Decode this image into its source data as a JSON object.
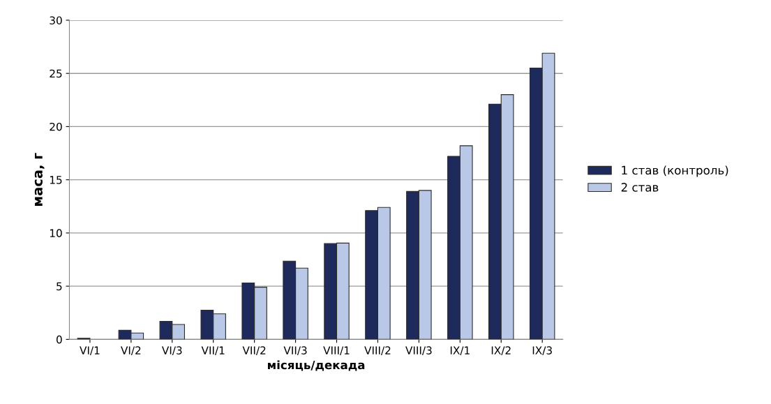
{
  "chart_data": {
    "type": "bar",
    "xlabel": "місяць/декада",
    "ylabel": "маса, г",
    "categories": [
      "VI/1",
      "VI/2",
      "VI/3",
      "VII/1",
      "VII/2",
      "VII/3",
      "VIII/1",
      "VIII/2",
      "VIII/3",
      "IX/1",
      "IX/2",
      "IX/3"
    ],
    "series": [
      {
        "name": "1 став (контроль)",
        "color": "#1f2a5c",
        "values": [
          0.1,
          0.85,
          1.7,
          2.75,
          5.3,
          7.35,
          9.0,
          12.1,
          13.9,
          17.2,
          22.1,
          25.5
        ]
      },
      {
        "name": "2 став",
        "color": "#b8c8e6",
        "values": [
          null,
          0.6,
          1.4,
          2.4,
          4.9,
          6.7,
          9.05,
          12.4,
          14.0,
          18.2,
          23.0,
          26.9
        ]
      }
    ],
    "ylim": [
      0,
      30
    ],
    "yticks": [
      0,
      5,
      10,
      15,
      20,
      25,
      30
    ],
    "grid": "y",
    "legend": "right"
  }
}
